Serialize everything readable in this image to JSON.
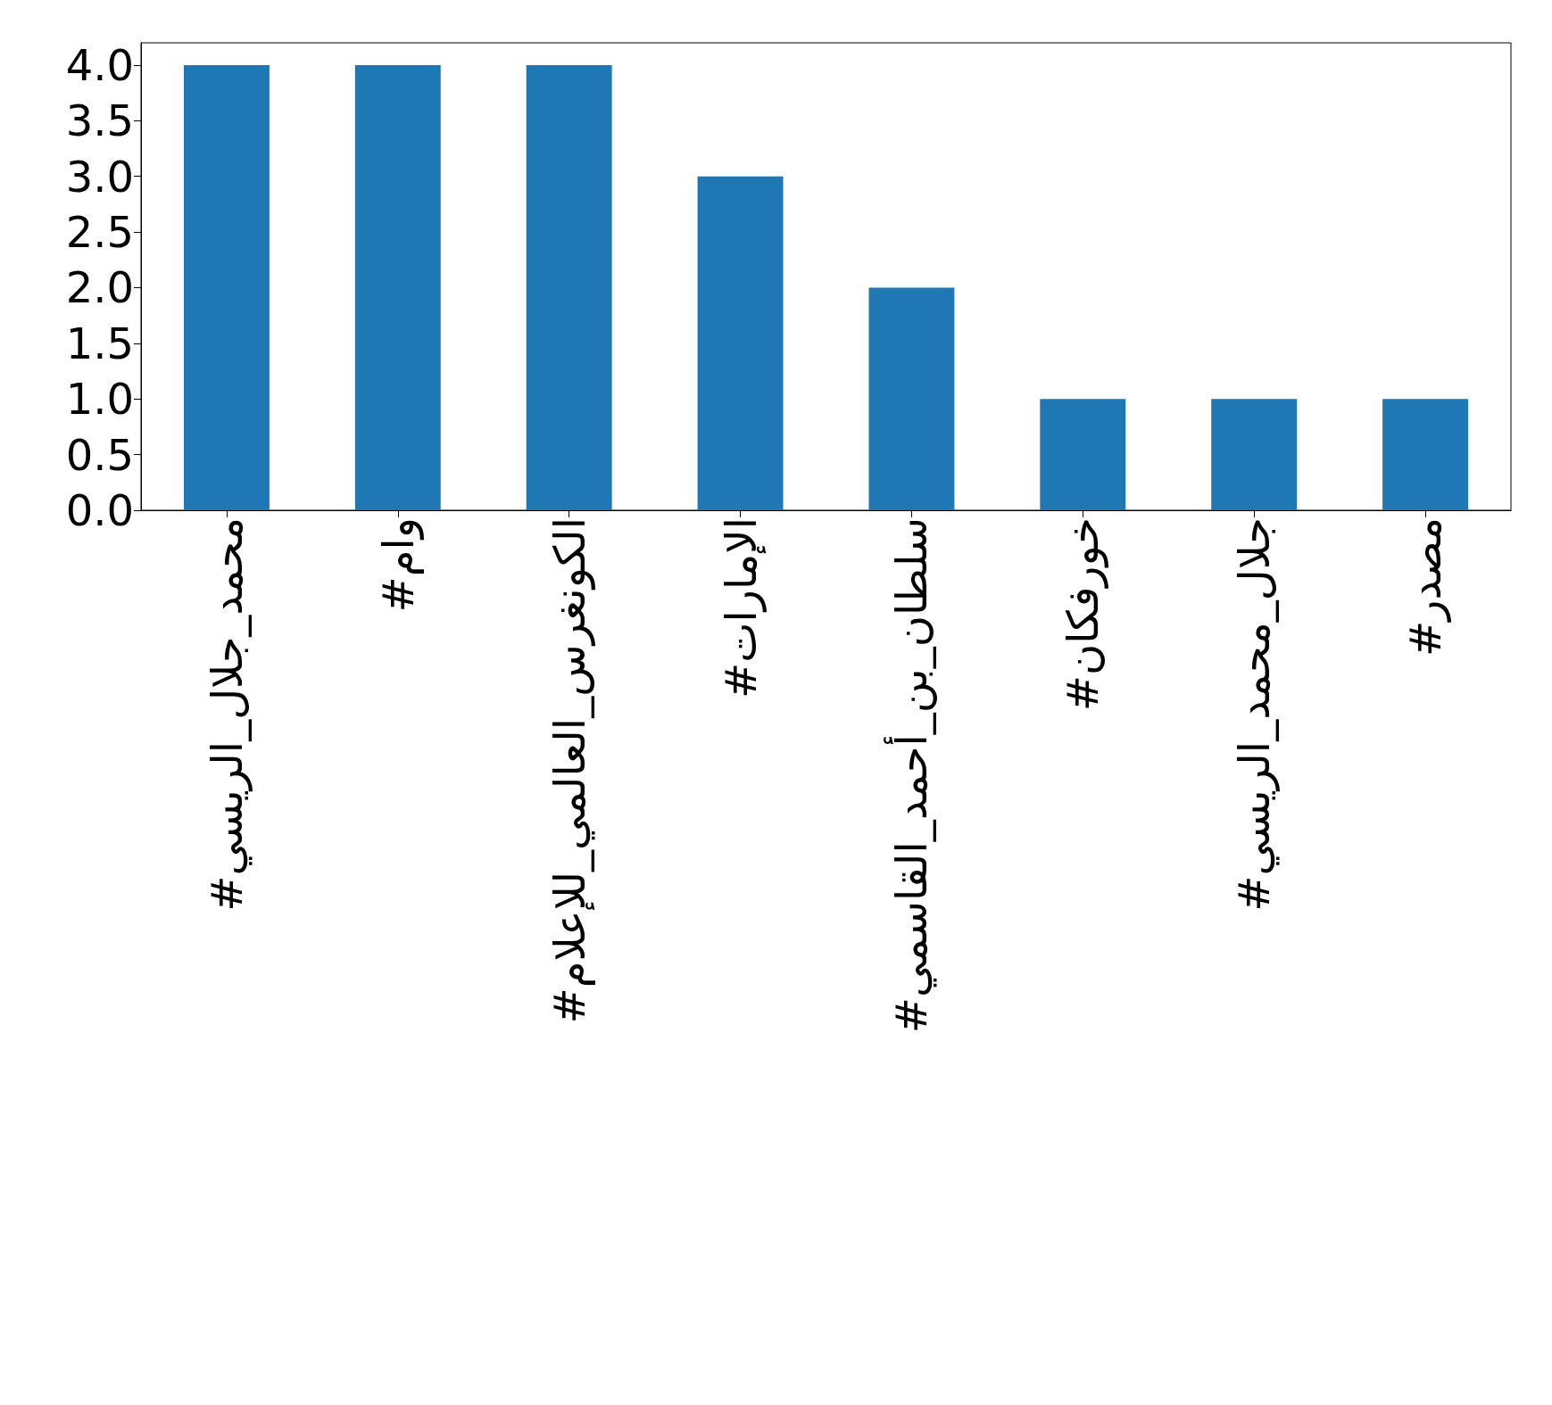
{
  "chart_data": {
    "type": "bar",
    "categories": [
      "#محمد_جلال_الريسي",
      "#وام",
      "#الكونغرس_العالمي_للإعلام",
      "#الإمارات",
      "#سلطان_بن_أحمد_القاسمي",
      "#خورفكان",
      "#جلال_محمد_الريسي",
      "#مصدر"
    ],
    "values": [
      4,
      4,
      4,
      3,
      2,
      1,
      1,
      1
    ],
    "color": "#1f77b4",
    "ylim": [
      0,
      4.2
    ],
    "yticks": [
      {
        "value": 0,
        "label": "0.0"
      },
      0.5,
      {
        "value": 1,
        "label": "1.0"
      },
      1.5,
      {
        "value": 2,
        "label": "2.0"
      },
      2.5,
      {
        "value": 3,
        "label": "3.0"
      },
      3.5,
      {
        "value": 4,
        "label": "4.0"
      }
    ],
    "grid": false
  }
}
